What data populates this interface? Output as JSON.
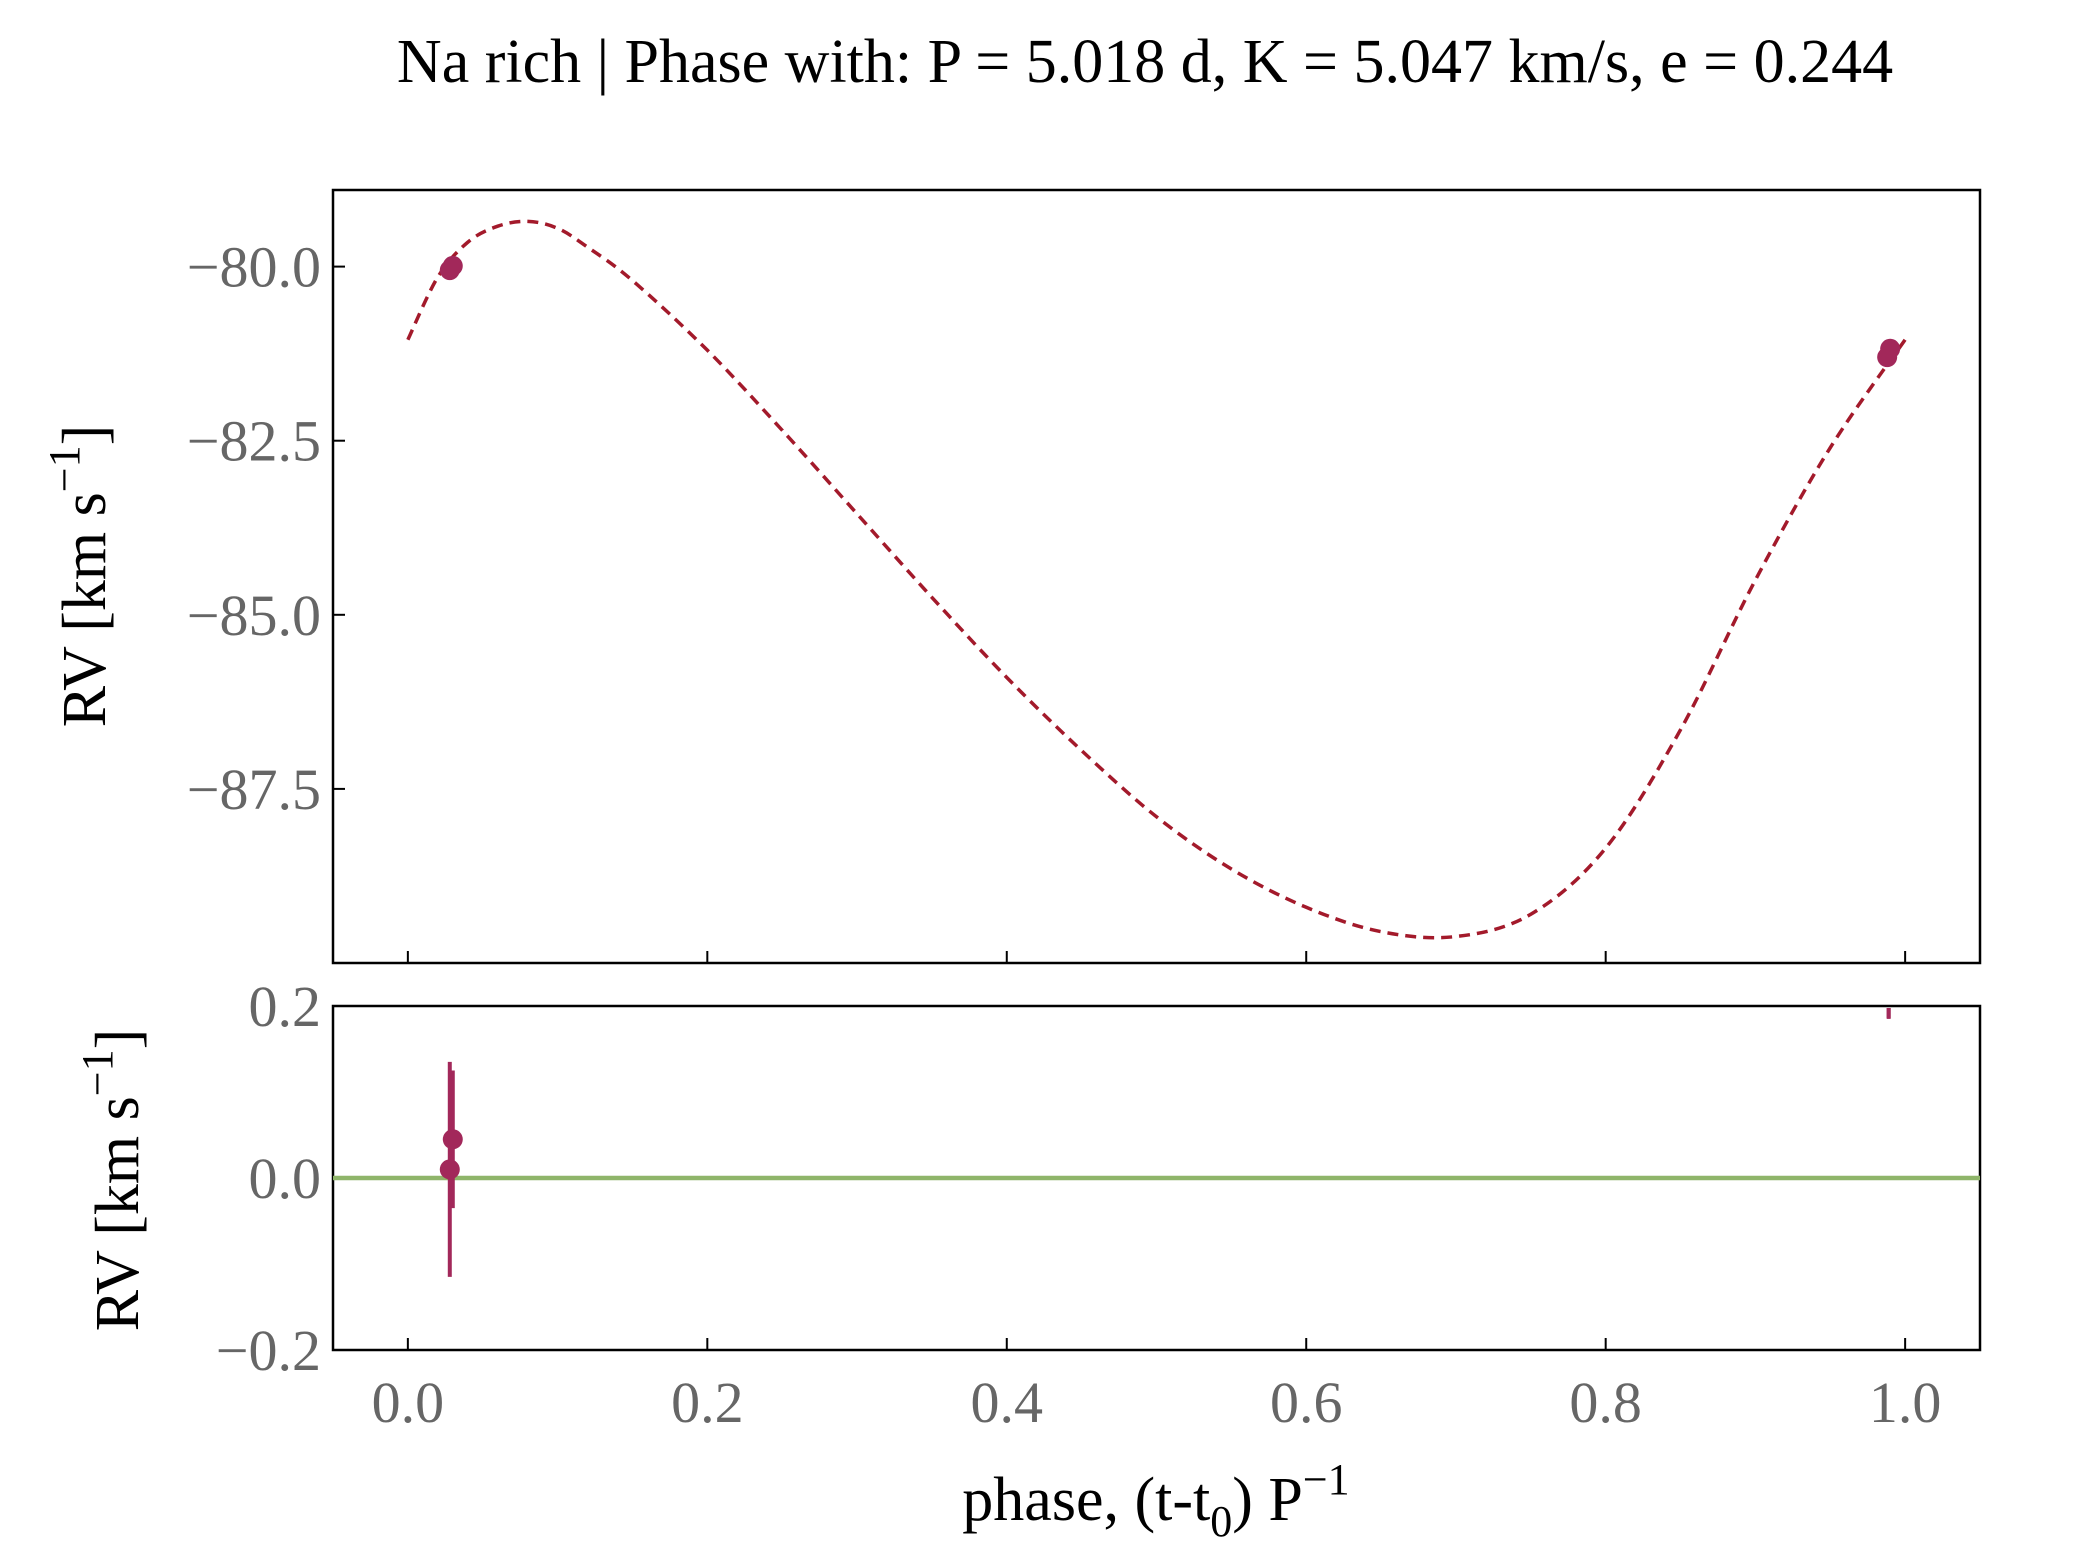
{
  "chart_data": {
    "title": "Na rich | Phase with: P = 5.018 d, K = 5.047 km/s, e = 0.244",
    "type": "line",
    "colors": {
      "model": "#a31a2b",
      "points": "#a2285a",
      "zero_line": "#8fb56a",
      "axes": "#000000"
    },
    "xlabel": "phase, (t-t",
    "xlabel_sub": "0",
    "xlabel_tail": ") P",
    "xlabel_sup": "−1",
    "xlim": [
      -0.05,
      1.05
    ],
    "xticks": [
      0.0,
      0.2,
      0.4,
      0.6,
      0.8,
      1.0
    ],
    "xtick_labels": [
      "0.0",
      "0.2",
      "0.4",
      "0.6",
      "0.8",
      "1.0"
    ],
    "panels": [
      {
        "name": "rv",
        "ylabel": "RV [km s",
        "ylabel_sup": "−1",
        "ylabel_tail": "]",
        "ylim": [
          -90.0,
          -78.9
        ],
        "yticks": [
          -80.0,
          -82.5,
          -85.0,
          -87.5
        ],
        "ytick_labels": [
          "−80.0",
          "−82.5",
          "−85.0",
          "−87.5"
        ],
        "model_curve": {
          "style": "dashed",
          "x": [
            0.0,
            0.02,
            0.04,
            0.06,
            0.08,
            0.1,
            0.12,
            0.15,
            0.2,
            0.25,
            0.3,
            0.35,
            0.4,
            0.45,
            0.5,
            0.55,
            0.6,
            0.65,
            0.7,
            0.75,
            0.8,
            0.85,
            0.9,
            0.95,
            1.0
          ],
          "y": [
            -81.05,
            -80.15,
            -79.65,
            -79.42,
            -79.35,
            -79.45,
            -79.72,
            -80.2,
            -81.2,
            -82.35,
            -83.55,
            -84.75,
            -85.9,
            -86.95,
            -87.9,
            -88.65,
            -89.2,
            -89.55,
            -89.62,
            -89.3,
            -88.35,
            -86.65,
            -84.5,
            -82.6,
            -81.05
          ]
        },
        "points": {
          "x": [
            0.028,
            0.03,
            0.988,
            0.99
          ],
          "y": [
            -80.05,
            -79.99,
            -81.3,
            -81.18
          ],
          "yerr": [
            0.12,
            0.08,
            0.0,
            0.0
          ]
        }
      },
      {
        "name": "residuals",
        "ylabel": "RV [km s",
        "ylabel_sup": "−1",
        "ylabel_tail": "]",
        "ylim": [
          -0.2,
          0.2
        ],
        "yticks": [
          0.2,
          0.0,
          -0.2
        ],
        "ytick_labels": [
          "0.2",
          "0.0",
          "−0.2"
        ],
        "zero_line": 0.0,
        "points": {
          "x": [
            0.028,
            0.03,
            0.989
          ],
          "y": [
            0.01,
            0.045,
            0.21
          ],
          "yerr": [
            0.125,
            0.08,
            0.025
          ]
        }
      }
    ],
    "grid": false,
    "legend": "none"
  }
}
